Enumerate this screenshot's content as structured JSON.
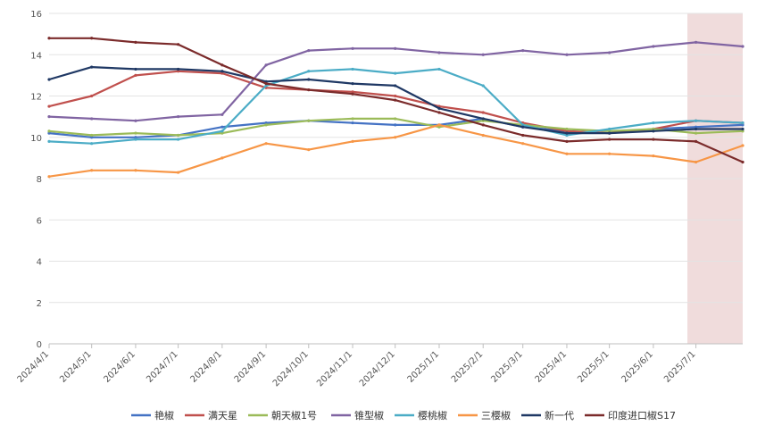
{
  "chart_data": {
    "type": "line",
    "title": "",
    "xlabel": "",
    "ylabel": "",
    "ylim": [
      0,
      16
    ],
    "yticks": [
      0,
      2,
      4,
      6,
      8,
      10,
      12,
      14,
      16
    ],
    "grid": "horizontal",
    "legend_position": "bottom",
    "highlight_region": {
      "start": "2025-06-25",
      "end": "2025-08-03",
      "color": "#f0dcdc"
    },
    "x": [
      "2024-04-01",
      "2024-05-01",
      "2024-06-01",
      "2024-07-01",
      "2024-08-01",
      "2024-09-01",
      "2024-10-01",
      "2024-11-01",
      "2024-12-01",
      "2025-01-01",
      "2025-02-01",
      "2025-03-01",
      "2025-04-01",
      "2025-05-01",
      "2025-06-01",
      "2025-07-01",
      "2025-08-03"
    ],
    "xticks": [
      "2024/4/1",
      "2024/5/1",
      "2024/6/1",
      "2024/7/1",
      "2024/8/1",
      "2024/9/1",
      "2024/10/1",
      "2024/11/1",
      "2024/12/1",
      "2025/1/1",
      "2025/2/1",
      "2025/3/1",
      "2025/4/1",
      "2025/5/1",
      "2025/6/1",
      "2025/7/1"
    ],
    "series": [
      {
        "name": "艳椒",
        "color": "#4472c4",
        "values": [
          10.2,
          10.0,
          10.0,
          10.1,
          10.5,
          10.7,
          10.8,
          10.7,
          10.6,
          10.6,
          10.9,
          10.5,
          10.3,
          10.2,
          10.4,
          10.5,
          10.6
        ]
      },
      {
        "name": "满天星",
        "color": "#c0504d",
        "values": [
          11.5,
          12.0,
          13.0,
          13.2,
          13.1,
          12.4,
          12.3,
          12.2,
          12.0,
          11.5,
          11.2,
          10.7,
          10.3,
          10.2,
          10.4,
          10.8,
          10.7
        ]
      },
      {
        "name": "朝天椒1号",
        "color": "#9bbb59",
        "values": [
          10.3,
          10.1,
          10.2,
          10.1,
          10.2,
          10.6,
          10.8,
          10.9,
          10.9,
          10.5,
          10.8,
          10.6,
          10.4,
          10.3,
          10.4,
          10.2,
          10.3
        ]
      },
      {
        "name": "锥型椒",
        "color": "#8064a2",
        "values": [
          11.0,
          10.9,
          10.8,
          11.0,
          11.1,
          13.5,
          14.2,
          14.3,
          14.3,
          14.1,
          14.0,
          14.2,
          14.0,
          14.1,
          14.4,
          14.6,
          14.4
        ]
      },
      {
        "name": "樱桃椒",
        "color": "#4bacc6",
        "values": [
          9.8,
          9.7,
          9.9,
          9.9,
          10.3,
          12.5,
          13.2,
          13.3,
          13.1,
          13.3,
          12.5,
          10.6,
          10.1,
          10.4,
          10.7,
          10.8,
          10.7
        ]
      },
      {
        "name": "三樱椒",
        "color": "#f79646",
        "values": [
          8.1,
          8.4,
          8.4,
          8.3,
          9.0,
          9.7,
          9.4,
          9.8,
          10.0,
          10.6,
          10.1,
          9.7,
          9.2,
          9.2,
          9.1,
          8.8,
          9.6
        ]
      },
      {
        "name": "新一代",
        "color": "#1f3864",
        "values": [
          12.8,
          13.4,
          13.3,
          13.3,
          13.2,
          12.7,
          12.8,
          12.6,
          12.5,
          11.4,
          10.9,
          10.5,
          10.2,
          10.2,
          10.3,
          10.4,
          10.4
        ]
      },
      {
        "name": "印度进口椒S17",
        "color": "#7b2b2b",
        "values": [
          14.8,
          14.8,
          14.6,
          14.5,
          13.5,
          12.6,
          12.3,
          12.1,
          11.8,
          11.2,
          10.6,
          10.1,
          9.8,
          9.9,
          9.9,
          9.8,
          8.8
        ]
      }
    ]
  }
}
